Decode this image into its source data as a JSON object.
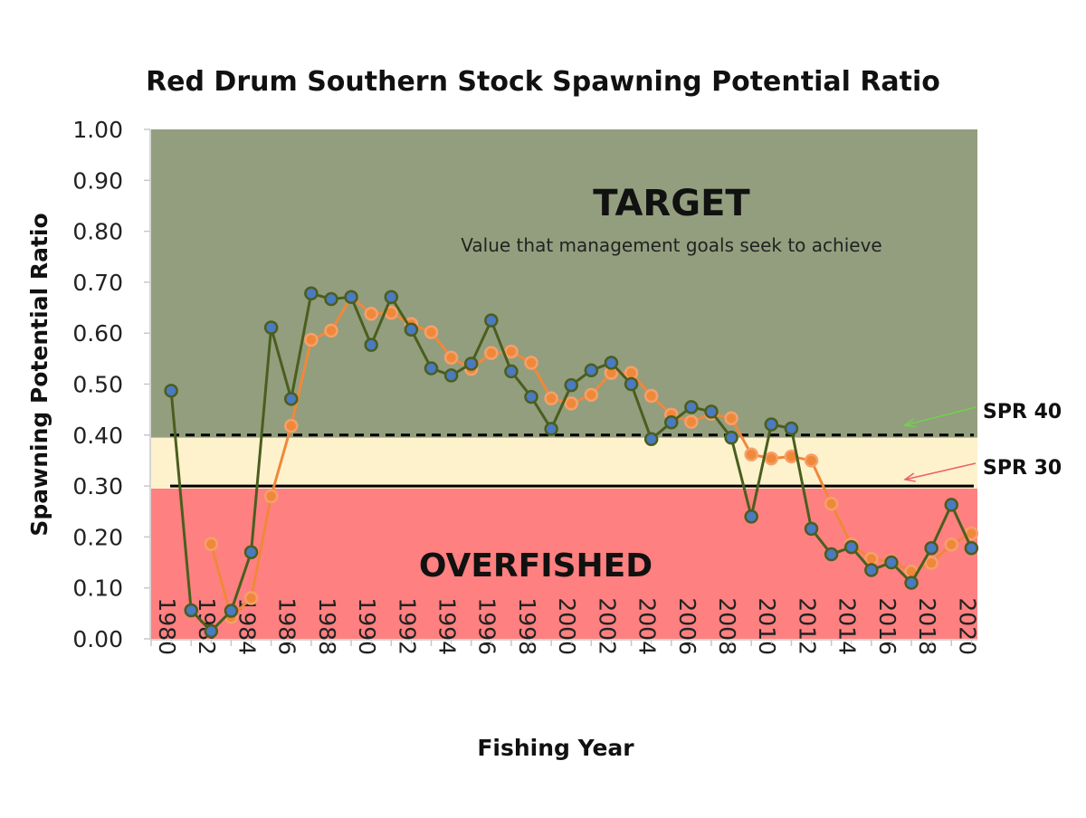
{
  "chart_data": {
    "type": "line",
    "title": "Red Drum Southern Stock Spawning Potential Ratio",
    "xlabel": "Fishing Year",
    "ylabel": "Spawning Potential Ratio",
    "ylim": [
      0,
      1
    ],
    "xlim": [
      1980,
      2021.3
    ],
    "yticks": [
      "0.00",
      "0.10",
      "0.20",
      "0.30",
      "0.40",
      "0.50",
      "0.60",
      "0.70",
      "0.80",
      "0.90",
      "1.00"
    ],
    "xticks": [
      "1980",
      "1982",
      "1984",
      "1986",
      "1988",
      "1990",
      "1992",
      "1994",
      "1996",
      "1998",
      "2000",
      "2002",
      "2004",
      "2006",
      "2008",
      "2010",
      "2012",
      "2014",
      "2016",
      "2018",
      "2020"
    ],
    "grid": false,
    "legend": "none",
    "zones": [
      {
        "label": "OVERFISHED",
        "ymin": 0,
        "ymax": 0.295,
        "color": "#ff8080"
      },
      {
        "label": "",
        "ymin": 0.295,
        "ymax": 0.395,
        "color": "#fef2cc"
      },
      {
        "label": "TARGET",
        "sublabel": "Value that management goals seek to achieve",
        "ymin": 0.395,
        "ymax": 1.0,
        "color": "#939e7e"
      }
    ],
    "reference_lines": [
      {
        "label": "SPR 40",
        "y": 0.4,
        "style": "dashed",
        "arrow_color": "#6fd34c"
      },
      {
        "label": "SPR 30",
        "y": 0.3,
        "style": "solid",
        "arrow_color": "#f06060"
      }
    ],
    "series": [
      {
        "color": "#4a5e1f",
        "marker_color": "#4a7ac0",
        "x": [
          1981,
          1982,
          1983,
          1984,
          1985,
          1986,
          1987,
          1988,
          1989,
          1990,
          1991,
          1992,
          1993,
          1994,
          1995,
          1996,
          1997,
          1998,
          1999,
          2000,
          2001,
          2002,
          2003,
          2004,
          2005,
          2006,
          2007,
          2008,
          2009,
          2010,
          2011,
          2012,
          2013,
          2014,
          2015,
          2016,
          2017,
          2018,
          2019,
          2020,
          2021
        ],
        "values": [
          0.487,
          0.056,
          0.015,
          0.055,
          0.17,
          0.611,
          0.471,
          0.678,
          0.667,
          0.671,
          0.577,
          0.671,
          0.607,
          0.531,
          0.517,
          0.54,
          0.625,
          0.525,
          0.475,
          0.412,
          0.498,
          0.527,
          0.542,
          0.5,
          0.392,
          0.425,
          0.455,
          0.446,
          0.395,
          0.24,
          0.421,
          0.413,
          0.216,
          0.166,
          0.18,
          0.135,
          0.15,
          0.11,
          0.178,
          0.263,
          0.178
        ]
      },
      {
        "color": "#f0883a",
        "marker_color": "#f0883a",
        "x": [
          1983,
          1984,
          1985,
          1986,
          1987,
          1988,
          1989,
          1990,
          1991,
          1992,
          1993,
          1994,
          1995,
          1996,
          1997,
          1998,
          1999,
          2000,
          2001,
          2002,
          2003,
          2004,
          2005,
          2006,
          2007,
          2008,
          2009,
          2010,
          2011,
          2012,
          2013,
          2014,
          2015,
          2016,
          2017,
          2018,
          2019,
          2020,
          2021
        ],
        "values": [
          0.186,
          0.043,
          0.08,
          0.28,
          0.418,
          0.587,
          0.605,
          0.671,
          0.638,
          0.64,
          0.618,
          0.602,
          0.552,
          0.53,
          0.561,
          0.564,
          0.542,
          0.472,
          0.462,
          0.479,
          0.522,
          0.522,
          0.477,
          0.44,
          0.426,
          0.442,
          0.433,
          0.362,
          0.354,
          0.358,
          0.35,
          0.265,
          0.185,
          0.157,
          0.152,
          0.132,
          0.149,
          0.185,
          0.207
        ]
      }
    ]
  }
}
